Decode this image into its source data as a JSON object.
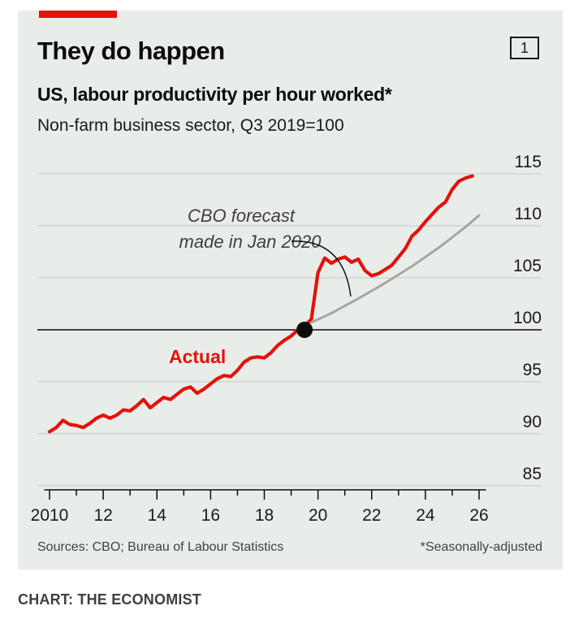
{
  "title": "They do happen",
  "chart_number": "1",
  "subtitle": "US, labour productivity per hour worked*",
  "subtitle2": "Non-farm business sector, Q3 2019=100",
  "footer": {
    "sources": "Sources: CBO; Bureau of Labour Statistics",
    "footnote": "*Seasonally-adjusted"
  },
  "credit": "CHART: THE ECONOMIST",
  "colors": {
    "actual": "#e3120b",
    "forecast": "#a6a6a6",
    "panel": "#e9ede9",
    "gridline": "#c4c9c4",
    "marker": "#0c0c0c"
  },
  "chart_data": {
    "type": "line",
    "title": "They do happen",
    "subtitle": "US, labour productivity per hour worked*",
    "ylabel": "Non-farm business sector, Q3 2019=100",
    "xlim": [
      2009.5,
      2026.2
    ],
    "ylim": [
      85,
      115
    ],
    "yticks": [
      115,
      110,
      105,
      100,
      95,
      90,
      85
    ],
    "xtick_labels": [
      "2010",
      "12",
      "14",
      "16",
      "18",
      "20",
      "22",
      "24",
      "26"
    ],
    "xtick_label_values": [
      2010,
      2012,
      2014,
      2016,
      2018,
      2020,
      2022,
      2024,
      2026
    ],
    "baseline": 100,
    "grid": true,
    "reference_point": {
      "x": 2019.5,
      "y": 100
    },
    "annotations": [
      {
        "text": "CBO forecast",
        "series": "CBO forecast made in Jan 2020"
      },
      {
        "text": "made in Jan 2020",
        "series": "CBO forecast made in Jan 2020"
      },
      {
        "text": "Actual",
        "series": "Actual"
      }
    ],
    "series": [
      {
        "name": "Actual",
        "color": "#e3120b",
        "x": [
          2010.0,
          2010.25,
          2010.5,
          2010.75,
          2011.0,
          2011.25,
          2011.5,
          2011.75,
          2012.0,
          2012.25,
          2012.5,
          2012.75,
          2013.0,
          2013.25,
          2013.5,
          2013.75,
          2014.0,
          2014.25,
          2014.5,
          2014.75,
          2015.0,
          2015.25,
          2015.5,
          2015.75,
          2016.0,
          2016.25,
          2016.5,
          2016.75,
          2017.0,
          2017.25,
          2017.5,
          2017.75,
          2018.0,
          2018.25,
          2018.5,
          2018.75,
          2019.0,
          2019.25,
          2019.5,
          2019.75,
          2020.0,
          2020.25,
          2020.5,
          2020.75,
          2021.0,
          2021.25,
          2021.5,
          2021.75,
          2022.0,
          2022.25,
          2022.5,
          2022.75,
          2023.0,
          2023.25,
          2023.5,
          2023.75,
          2024.0,
          2024.25,
          2024.5,
          2024.75,
          2025.0,
          2025.25,
          2025.5,
          2025.75
        ],
        "values": [
          90.2,
          90.6,
          91.3,
          90.9,
          90.8,
          90.6,
          91.0,
          91.5,
          91.8,
          91.5,
          91.8,
          92.3,
          92.2,
          92.7,
          93.3,
          92.5,
          93.0,
          93.5,
          93.3,
          93.8,
          94.3,
          94.5,
          93.9,
          94.3,
          94.8,
          95.3,
          95.6,
          95.5,
          96.1,
          96.9,
          97.3,
          97.4,
          97.3,
          97.8,
          98.5,
          99.0,
          99.4,
          100.0,
          100.4,
          101.0,
          105.5,
          106.9,
          106.4,
          106.8,
          107.0,
          106.5,
          106.8,
          105.7,
          105.2,
          105.4,
          105.8,
          106.2,
          107.0,
          107.8,
          109.0,
          109.6,
          110.4,
          111.1,
          111.8,
          112.3,
          113.5,
          114.3,
          114.6,
          114.8
        ]
      },
      {
        "name": "CBO forecast made in Jan 2020",
        "color": "#a6a6a6",
        "x": [
          2019.75,
          2020.5,
          2021.5,
          2022.5,
          2023.5,
          2024.5,
          2025.5,
          2026.0
        ],
        "values": [
          100.7,
          101.6,
          103.0,
          104.5,
          106.1,
          107.9,
          109.9,
          111.0
        ]
      }
    ]
  }
}
